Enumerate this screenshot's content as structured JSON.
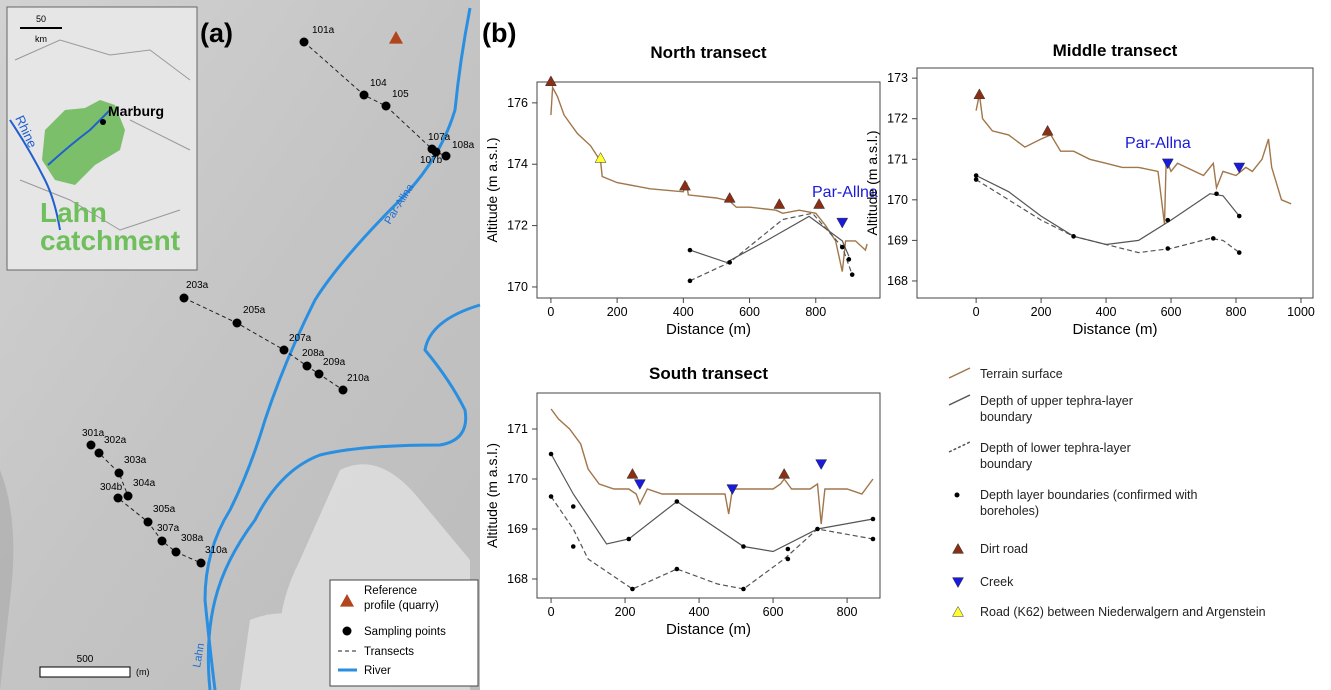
{
  "map": {
    "panel_label": "(a)",
    "inset": {
      "scale": "50",
      "unit": "km",
      "city": "Marburg",
      "river": "Rhine",
      "catchment": [
        "Lahn",
        "catchment"
      ]
    },
    "rivers": [
      "Par-Allna",
      "Lahn"
    ],
    "points": [
      "101a",
      "104",
      "105",
      "107a",
      "107b",
      "108a",
      "203a",
      "205a",
      "207a",
      "208a",
      "209a",
      "210a",
      "301a",
      "302a",
      "303a",
      "304a",
      "304b",
      "305a",
      "307a",
      "308a",
      "310a"
    ],
    "scale": {
      "value": "500",
      "unit": "(m)"
    },
    "legend": [
      [
        "Reference",
        "profile (quarry)"
      ],
      [
        "Sampling points"
      ],
      [
        "Transects"
      ],
      [
        "River"
      ]
    ]
  },
  "panel_b": "(b)",
  "chart_data": [
    {
      "type": "line",
      "title": "North transect",
      "xlabel": "Distance (m)",
      "ylabel": "Altitude (m a.s.l.)",
      "annotation": "Par-Allna",
      "xlim": [
        -42,
        994
      ],
      "ylim": [
        169.64,
        176.68
      ],
      "xticks": [
        0,
        200,
        400,
        600,
        800
      ],
      "yticks": [
        170,
        172,
        174,
        176
      ],
      "series": [
        {
          "name": "Terrain surface",
          "color": "#a0764a",
          "style": "line",
          "x": [
            0,
            5,
            20,
            40,
            80,
            120,
            150,
            155,
            200,
            300,
            400,
            410,
            415,
            500,
            540,
            560,
            600,
            680,
            700,
            750,
            800,
            830,
            860,
            880,
            890,
            920,
            950,
            955
          ],
          "values": [
            175.6,
            176.5,
            176.2,
            175.6,
            175.0,
            174.6,
            174.1,
            173.6,
            173.4,
            173.2,
            173.1,
            173.4,
            173.0,
            172.9,
            172.8,
            172.6,
            172.6,
            172.5,
            172.4,
            172.5,
            172.4,
            172.0,
            171.5,
            170.5,
            171.5,
            171.5,
            171.2,
            171.4
          ]
        },
        {
          "name": "Depth of upper tephra-layer boundary",
          "color": "#555555",
          "style": "line",
          "x": [
            420,
            530,
            650,
            780,
            880,
            900
          ],
          "values": [
            171.2,
            170.8,
            171.5,
            172.3,
            171.5,
            171.0
          ]
        },
        {
          "name": "Depth of lower tephra-layer boundary",
          "color": "#555555",
          "style": "dashed",
          "x": [
            420,
            540,
            700,
            790,
            880,
            910
          ],
          "values": [
            170.2,
            170.8,
            172.2,
            172.4,
            171.3,
            170.4
          ]
        },
        {
          "name": "Depth layer boundaries (confirmed with boreholes)",
          "color": "#000000",
          "style": "points",
          "x": [
            420,
            420,
            540,
            880,
            900,
            910
          ],
          "values": [
            171.2,
            170.2,
            170.8,
            171.3,
            170.9,
            170.4
          ]
        },
        {
          "name": "Dirt road",
          "color": "#8b2e16",
          "style": "triangle-up",
          "x": [
            0,
            405,
            540,
            690,
            810
          ],
          "values": [
            176.7,
            173.3,
            172.9,
            172.7,
            172.7
          ]
        },
        {
          "name": "Creek",
          "color": "#1a1adb",
          "style": "triangle-down",
          "x": [
            880
          ],
          "values": [
            172.1
          ]
        },
        {
          "name": "Road (K62) between Niederwalgern and Argenstein",
          "color": "#ffff33",
          "style": "triangle-up",
          "x": [
            150
          ],
          "values": [
            174.2
          ]
        }
      ]
    },
    {
      "type": "line",
      "title": "Middle transect",
      "xlabel": "Distance (m)",
      "ylabel": "Altitude (m a.s.l.)",
      "annotation": "Par-Allna",
      "xlim": [
        -182,
        1037
      ],
      "ylim": [
        167.58,
        173.25
      ],
      "xticks": [
        0,
        200,
        400,
        600,
        800,
        1000
      ],
      "yticks": [
        168,
        169,
        170,
        171,
        172,
        173
      ],
      "series": [
        {
          "color": "#a0764a",
          "style": "line",
          "x": [
            0,
            10,
            20,
            50,
            100,
            150,
            200,
            230,
            260,
            300,
            350,
            400,
            450,
            500,
            560,
            580,
            585,
            600,
            620,
            700,
            730,
            740,
            760,
            800,
            830,
            850,
            880,
            900,
            910,
            940,
            970
          ],
          "values": [
            172.2,
            172.6,
            172.0,
            171.7,
            171.6,
            171.3,
            171.5,
            171.6,
            171.2,
            171.2,
            171.0,
            170.9,
            170.8,
            170.8,
            170.7,
            169.4,
            171.0,
            170.7,
            170.9,
            170.6,
            170.9,
            170.3,
            170.7,
            170.6,
            170.8,
            170.7,
            171.0,
            171.5,
            170.8,
            170.0,
            169.9
          ]
        },
        {
          "color": "#555555",
          "style": "line",
          "x": [
            0,
            100,
            200,
            300,
            400,
            500,
            600,
            720,
            760,
            810
          ],
          "values": [
            170.6,
            170.2,
            169.6,
            169.1,
            168.9,
            169.0,
            169.5,
            170.15,
            170.1,
            169.6
          ]
        },
        {
          "color": "#555555",
          "style": "dashed",
          "x": [
            0,
            100,
            200,
            300,
            400,
            500,
            600,
            720,
            760,
            810
          ],
          "values": [
            170.5,
            170.0,
            169.5,
            169.1,
            168.9,
            168.7,
            168.8,
            169.05,
            169.0,
            168.7
          ]
        },
        {
          "color": "#000000",
          "style": "points",
          "x": [
            0,
            0,
            300,
            590,
            590,
            740,
            730,
            810,
            810
          ],
          "values": [
            170.6,
            170.5,
            169.1,
            169.5,
            168.8,
            170.15,
            169.05,
            169.6,
            168.7
          ]
        },
        {
          "color": "#8b2e16",
          "style": "triangle-up",
          "x": [
            10,
            220
          ],
          "values": [
            172.6,
            171.7
          ]
        },
        {
          "color": "#1a1adb",
          "style": "triangle-down",
          "x": [
            590,
            810
          ],
          "values": [
            170.9,
            170.8
          ]
        }
      ]
    },
    {
      "type": "line",
      "title": "South transect",
      "xlabel": "Distance (m)",
      "ylabel": "Altitude (m a.s.l.)",
      "xlim": [
        -38,
        889
      ],
      "ylim": [
        167.62,
        171.72
      ],
      "xticks": [
        0,
        200,
        400,
        600,
        800
      ],
      "yticks": [
        168,
        169,
        170,
        171
      ],
      "series": [
        {
          "color": "#a0764a",
          "style": "line",
          "x": [
            0,
            20,
            50,
            80,
            100,
            130,
            170,
            210,
            230,
            240,
            260,
            300,
            400,
            470,
            480,
            490,
            550,
            600,
            620,
            630,
            650,
            700,
            720,
            730,
            740,
            800,
            840,
            860,
            870
          ],
          "values": [
            171.4,
            171.2,
            171.0,
            170.7,
            170.2,
            169.9,
            169.8,
            169.8,
            169.7,
            169.5,
            169.8,
            169.7,
            169.7,
            169.7,
            169.3,
            169.8,
            169.8,
            169.8,
            169.9,
            170.0,
            169.8,
            169.8,
            169.9,
            169.1,
            169.8,
            169.8,
            169.7,
            169.9,
            170.0
          ]
        },
        {
          "color": "#555555",
          "style": "line",
          "x": [
            0,
            60,
            150,
            210,
            340,
            450,
            520,
            600,
            720,
            870
          ],
          "values": [
            170.5,
            169.7,
            168.7,
            168.8,
            169.55,
            169.0,
            168.65,
            168.55,
            169.0,
            169.2
          ]
        },
        {
          "color": "#555555",
          "style": "dashed",
          "x": [
            0,
            60,
            100,
            220,
            340,
            450,
            520,
            630,
            720,
            870
          ],
          "values": [
            169.65,
            169.0,
            168.4,
            167.8,
            168.2,
            167.9,
            167.8,
            168.4,
            169.0,
            168.8
          ]
        },
        {
          "color": "#000000",
          "style": "points",
          "x": [
            0,
            0,
            60,
            60,
            210,
            220,
            340,
            340,
            520,
            520,
            640,
            640,
            720,
            870,
            870
          ],
          "values": [
            170.5,
            169.65,
            169.45,
            168.65,
            168.8,
            167.8,
            169.55,
            168.2,
            168.65,
            167.8,
            168.6,
            168.4,
            169.0,
            169.2,
            168.8
          ]
        },
        {
          "color": "#8b2e16",
          "style": "triangle-up",
          "x": [
            220,
            630
          ],
          "values": [
            170.1,
            170.1
          ]
        },
        {
          "color": "#1a1adb",
          "style": "triangle-down",
          "x": [
            240,
            490,
            730
          ],
          "values": [
            169.9,
            169.8,
            170.3
          ]
        }
      ]
    }
  ]
}
